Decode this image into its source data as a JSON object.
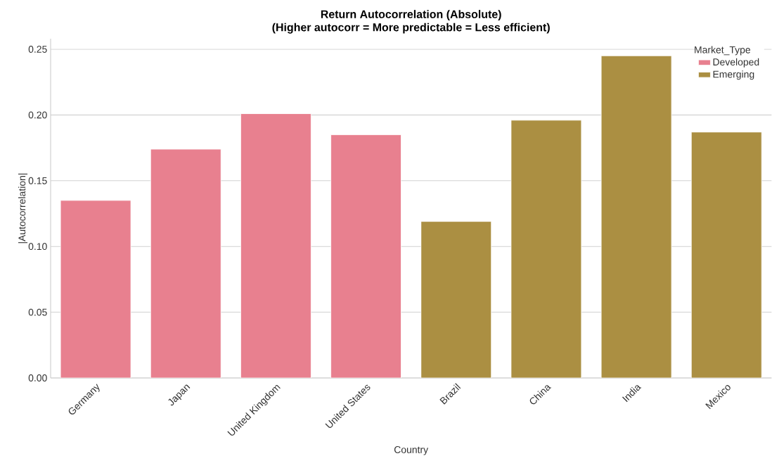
{
  "chart_data": {
    "type": "bar",
    "title": "Return Autocorrelation (Absolute)",
    "subtitle": "(Higher autocorr = More predictable = Less efficient)",
    "xlabel": "Country",
    "ylabel": "|Autocorrelation|",
    "categories": [
      "Germany",
      "Japan",
      "United Kingdom",
      "United States",
      "Brazil",
      "China",
      "India",
      "Mexico"
    ],
    "series": [
      {
        "name": "Developed",
        "color": "#e8808f",
        "values": [
          0.135,
          0.174,
          0.201,
          0.185,
          null,
          null,
          null,
          null
        ]
      },
      {
        "name": "Emerging",
        "color": "#ab8f42",
        "values": [
          null,
          null,
          null,
          null,
          0.119,
          0.196,
          0.245,
          0.187
        ]
      }
    ],
    "legend_title": "Market_Type",
    "legend": "top right",
    "grid": "y",
    "ylim": [
      0,
      0.258
    ],
    "yticks": [
      {
        "value": 0,
        "label": "0.00"
      },
      {
        "value": 0.05,
        "label": "0.05"
      },
      {
        "value": 0.1,
        "label": "0.10"
      },
      {
        "value": 0.15,
        "label": "0.15"
      },
      {
        "value": 0.2,
        "label": "0.20"
      },
      {
        "value": 0.25,
        "label": "0.25"
      }
    ]
  }
}
